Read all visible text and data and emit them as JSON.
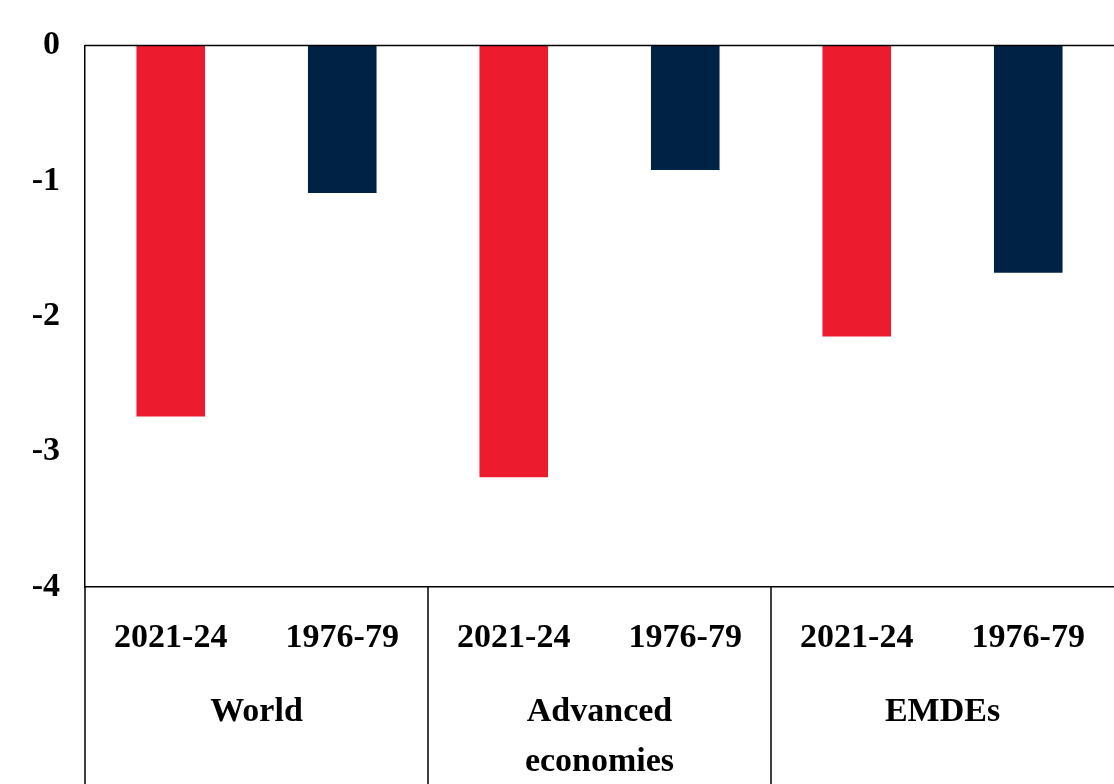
{
  "chart_data": {
    "type": "bar",
    "categories": [
      "2021-24",
      "1976-79",
      "2021-24",
      "1976-79",
      "2021-24",
      "1976-79"
    ],
    "values": [
      -2.74,
      -1.09,
      -3.19,
      -0.92,
      -2.15,
      -1.68
    ],
    "colors": [
      "#ec1c2e",
      "#002244",
      "#ec1c2e",
      "#002244",
      "#ec1c2e",
      "#002244"
    ],
    "annotations": [
      "World",
      "Advanced economies",
      "EMDEs"
    ],
    "ylim": [
      -4,
      0
    ],
    "yticks": [
      0,
      -1,
      -2,
      -3,
      -4
    ],
    "grid": false,
    "legend": false
  }
}
